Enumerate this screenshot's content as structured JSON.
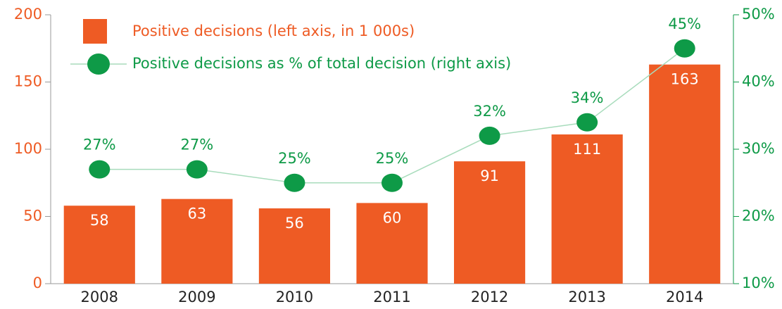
{
  "chart_data": {
    "type": "bar",
    "categories": [
      "2008",
      "2009",
      "2010",
      "2011",
      "2012",
      "2013",
      "2014"
    ],
    "series": [
      {
        "name": "Positive decisions (left axis, in 1 000s)",
        "type": "bar",
        "color": "#ee5b24",
        "values": [
          58,
          63,
          56,
          60,
          91,
          111,
          163
        ]
      },
      {
        "name": "Positive decisions as % of total decision (right axis)",
        "type": "line",
        "axis": "y2",
        "color": "#0e9a47",
        "values": [
          27,
          27,
          25,
          25,
          32,
          34,
          45
        ],
        "value_labels": [
          "27%",
          "27%",
          "25%",
          "25%",
          "32%",
          "34%",
          "45%"
        ]
      }
    ],
    "ylim": [
      0,
      200
    ],
    "yticks": [
      0,
      50,
      100,
      150,
      200
    ],
    "y2lim": [
      10,
      50
    ],
    "y2ticks": [
      {
        "value": 10,
        "label": "10%"
      },
      {
        "value": 20,
        "label": "20%"
      },
      {
        "value": 30,
        "label": "30%"
      },
      {
        "value": 40,
        "label": "40%"
      },
      {
        "value": 50,
        "label": "50%"
      }
    ]
  }
}
